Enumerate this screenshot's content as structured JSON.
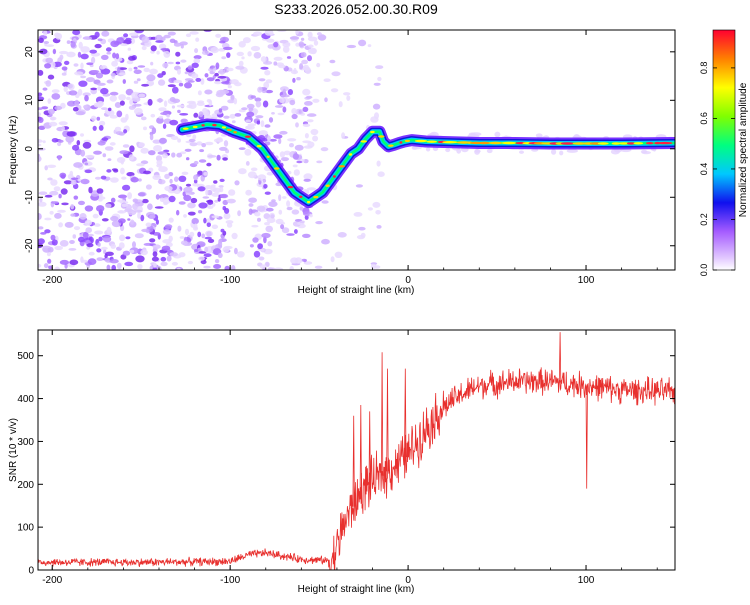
{
  "title": "S233.2026.052.00.30.R09",
  "chart_data": [
    {
      "type": "heatmap",
      "xlabel": "Height of straight line (km)",
      "ylabel": "Frequency (Hz)",
      "xlim": [
        -208,
        150
      ],
      "ylim": [
        -25,
        24.5
      ],
      "x_ticks": [
        -200,
        -100,
        0,
        100
      ],
      "y_ticks": [
        -20,
        -10,
        0,
        10,
        20
      ],
      "x_tick_labels": [
        "-200",
        "-100",
        "0",
        "100"
      ],
      "y_tick_labels": [
        "-20",
        "-10",
        "0",
        "10",
        "20"
      ],
      "ridge": {
        "x": [
          -127,
          -120,
          -113,
          -106,
          -98,
          -90,
          -82,
          -76,
          -72,
          -68,
          -64,
          -60,
          -56,
          -52,
          -48,
          -44,
          -40,
          -36,
          -32,
          -28,
          -24,
          -20,
          -16,
          -14,
          -11,
          -8,
          -5,
          -2,
          2,
          10,
          20,
          30,
          40,
          60,
          80,
          100,
          120,
          150
        ],
        "y": [
          4,
          4.5,
          5,
          4.8,
          3.5,
          2.5,
          0,
          -3,
          -5,
          -7,
          -9,
          -10,
          -11,
          -10,
          -9,
          -7,
          -5,
          -3,
          -1,
          0,
          2,
          3.5,
          3.5,
          1.5,
          0.5,
          0.8,
          1.2,
          1.5,
          1.8,
          1.5,
          1.4,
          1.3,
          1.2,
          1.2,
          1.1,
          1.1,
          1.1,
          1.2
        ]
      },
      "colorbar": {
        "label": "Normalized spectral amplitude",
        "range": [
          0,
          0.95
        ],
        "ticks": [
          0,
          0.2,
          0.4,
          0.6,
          0.8
        ],
        "tick_labels": [
          "0.0",
          "0.2",
          "0.4",
          "0.6",
          "0.8"
        ]
      }
    },
    {
      "type": "line",
      "xlabel": "Height of straight line (km)",
      "ylabel": "SNR (10 * v/v)",
      "xlim": [
        -208,
        150
      ],
      "ylim": [
        0,
        560
      ],
      "x_ticks": [
        -200,
        -100,
        0,
        100
      ],
      "y_ticks": [
        0,
        100,
        200,
        300,
        400,
        500
      ],
      "x_tick_labels": [
        "-200",
        "-100",
        "0",
        "100"
      ],
      "y_tick_labels": [
        "0",
        "100",
        "200",
        "300",
        "400",
        "500"
      ],
      "series": [
        {
          "name": "SNR",
          "color": "#e8302e",
          "profile_x": [
            -208,
            -150,
            -100,
            -90,
            -80,
            -60,
            -45,
            -42,
            -35,
            -25,
            -15,
            0,
            10,
            20,
            30,
            40,
            60,
            80,
            100,
            120,
            150
          ],
          "profile_y": [
            18,
            18,
            20,
            35,
            40,
            25,
            22,
            30,
            120,
            190,
            220,
            270,
            330,
            380,
            410,
            430,
            440,
            440,
            430,
            420,
            415
          ],
          "spikes_x": [
            -31,
            -27,
            -22,
            -15,
            -12,
            -2,
            85,
            100
          ],
          "spikes_y": [
            360,
            385,
            370,
            508,
            470,
            470,
            555,
            190
          ]
        }
      ]
    }
  ]
}
